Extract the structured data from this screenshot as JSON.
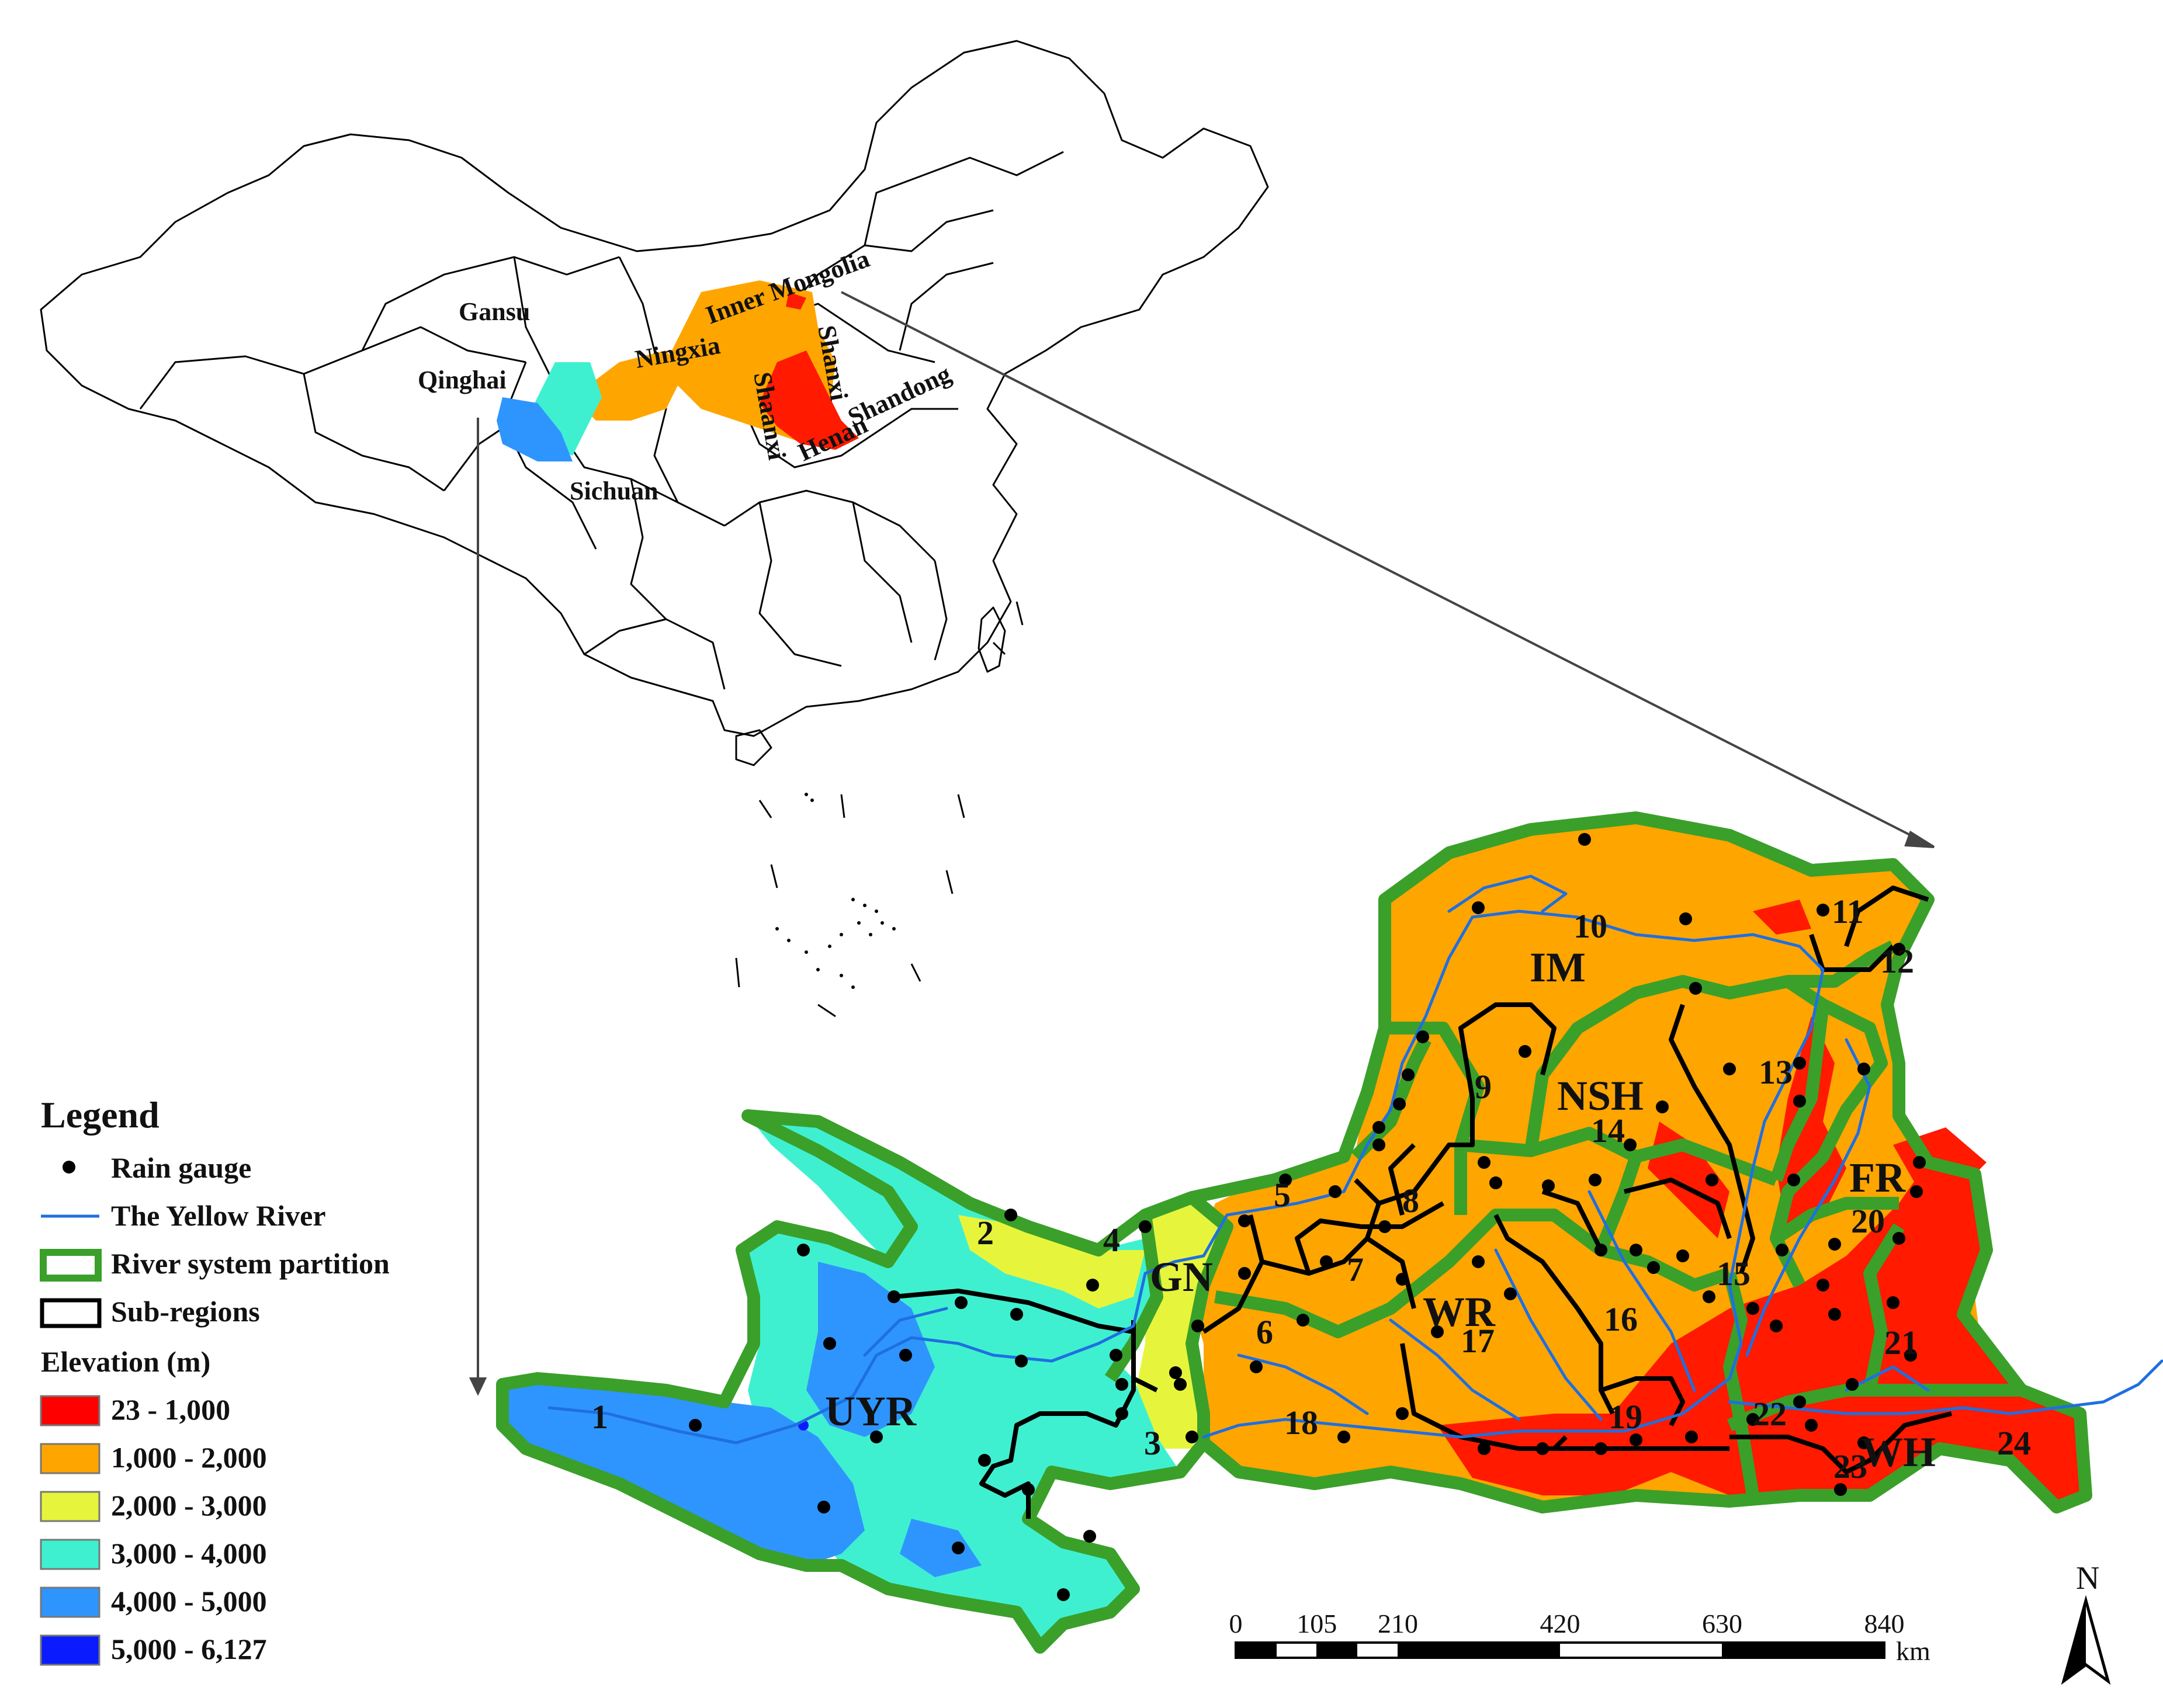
{
  "provinces": [
    "Inner Mongolia",
    "Gansu",
    "Ningxia",
    "Qinghai",
    "Shanxi",
    "Shaanxi",
    "Henan",
    "Shandong",
    "Sichuan"
  ],
  "regions": [
    "UYR",
    "GN",
    "IM",
    "NSH",
    "WR",
    "FR",
    "WH"
  ],
  "subregions": [
    "1",
    "2",
    "3",
    "4",
    "5",
    "6",
    "7",
    "8",
    "9",
    "10",
    "11",
    "12",
    "13",
    "14",
    "15",
    "16",
    "17",
    "18",
    "19",
    "20",
    "21",
    "22",
    "23",
    "24"
  ],
  "legend": {
    "title": "Legend",
    "rain_gauge": "Rain gauge",
    "river": "The Yellow River",
    "partition": "River system partition",
    "subregions": "Sub-regions",
    "elevation_title": "Elevation (m)",
    "classes": [
      {
        "label": "23 - 1,000",
        "color": "#ff0000"
      },
      {
        "label": "1,000 - 2,000",
        "color": "#ffa500"
      },
      {
        "label": "2,000 - 3,000",
        "color": "#e6f53c"
      },
      {
        "label": "3,000 - 4,000",
        "color": "#3ff0d0"
      },
      {
        "label": "4,000 - 5,000",
        "color": "#2e95ff"
      },
      {
        "label": "5,000 - 6,127",
        "color": "#0a1cff"
      }
    ]
  },
  "scale_bar": {
    "ticks": [
      "0",
      "105",
      "210",
      "420",
      "630",
      "840"
    ],
    "unit": "km"
  },
  "north_arrow": {
    "label": "N"
  },
  "colors": {
    "partition": "#3aa02a",
    "subregion_line": "#000000",
    "river": "#1f6fe0",
    "gauge": "#000000"
  }
}
